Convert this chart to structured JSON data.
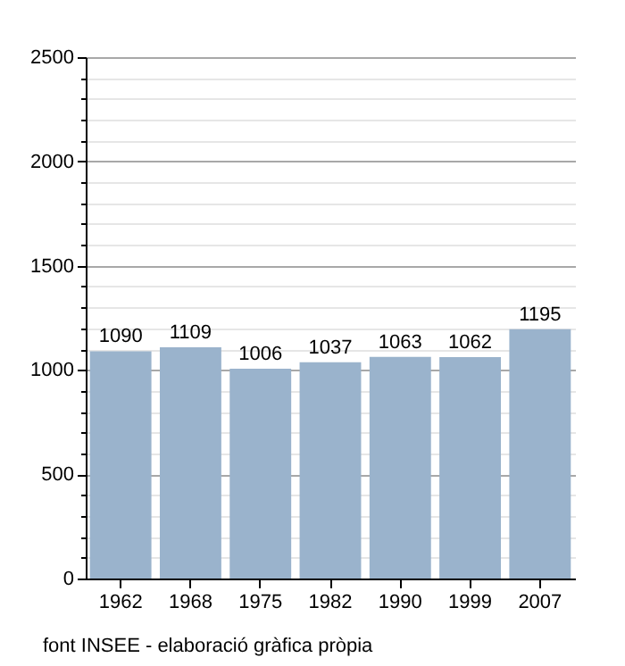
{
  "chart_data": {
    "type": "bar",
    "categories": [
      "1962",
      "1968",
      "1975",
      "1982",
      "1990",
      "1999",
      "2007"
    ],
    "values": [
      1090,
      1109,
      1006,
      1037,
      1063,
      1062,
      1195
    ],
    "color": "#9ab3cc",
    "data_labels": true,
    "ylim": [
      0,
      2500
    ],
    "yticks": [
      0,
      {
        "value": 100,
        "label": null
      },
      {
        "value": 200,
        "label": null
      },
      {
        "value": 300,
        "label": null
      },
      {
        "value": 400,
        "label": null
      },
      500,
      {
        "value": 600,
        "label": null
      },
      {
        "value": 700,
        "label": null
      },
      {
        "value": 800,
        "label": null
      },
      {
        "value": 900,
        "label": null
      },
      1000,
      {
        "value": 1100,
        "label": null
      },
      {
        "value": 1200,
        "label": null
      },
      {
        "value": 1300,
        "label": null
      },
      {
        "value": 1400,
        "label": null
      },
      1500,
      {
        "value": 1600,
        "label": null
      },
      {
        "value": 1700,
        "label": null
      },
      {
        "value": 1800,
        "label": null
      },
      {
        "value": 1900,
        "label": null
      },
      2000,
      {
        "value": 2100,
        "label": null
      },
      {
        "value": 2200,
        "label": null
      },
      {
        "value": 2300,
        "label": null
      },
      {
        "value": 2400,
        "label": null
      },
      2500
    ],
    "grid": "y",
    "annotations": [
      "font INSEE - elaboració gràfica pròpia"
    ]
  }
}
